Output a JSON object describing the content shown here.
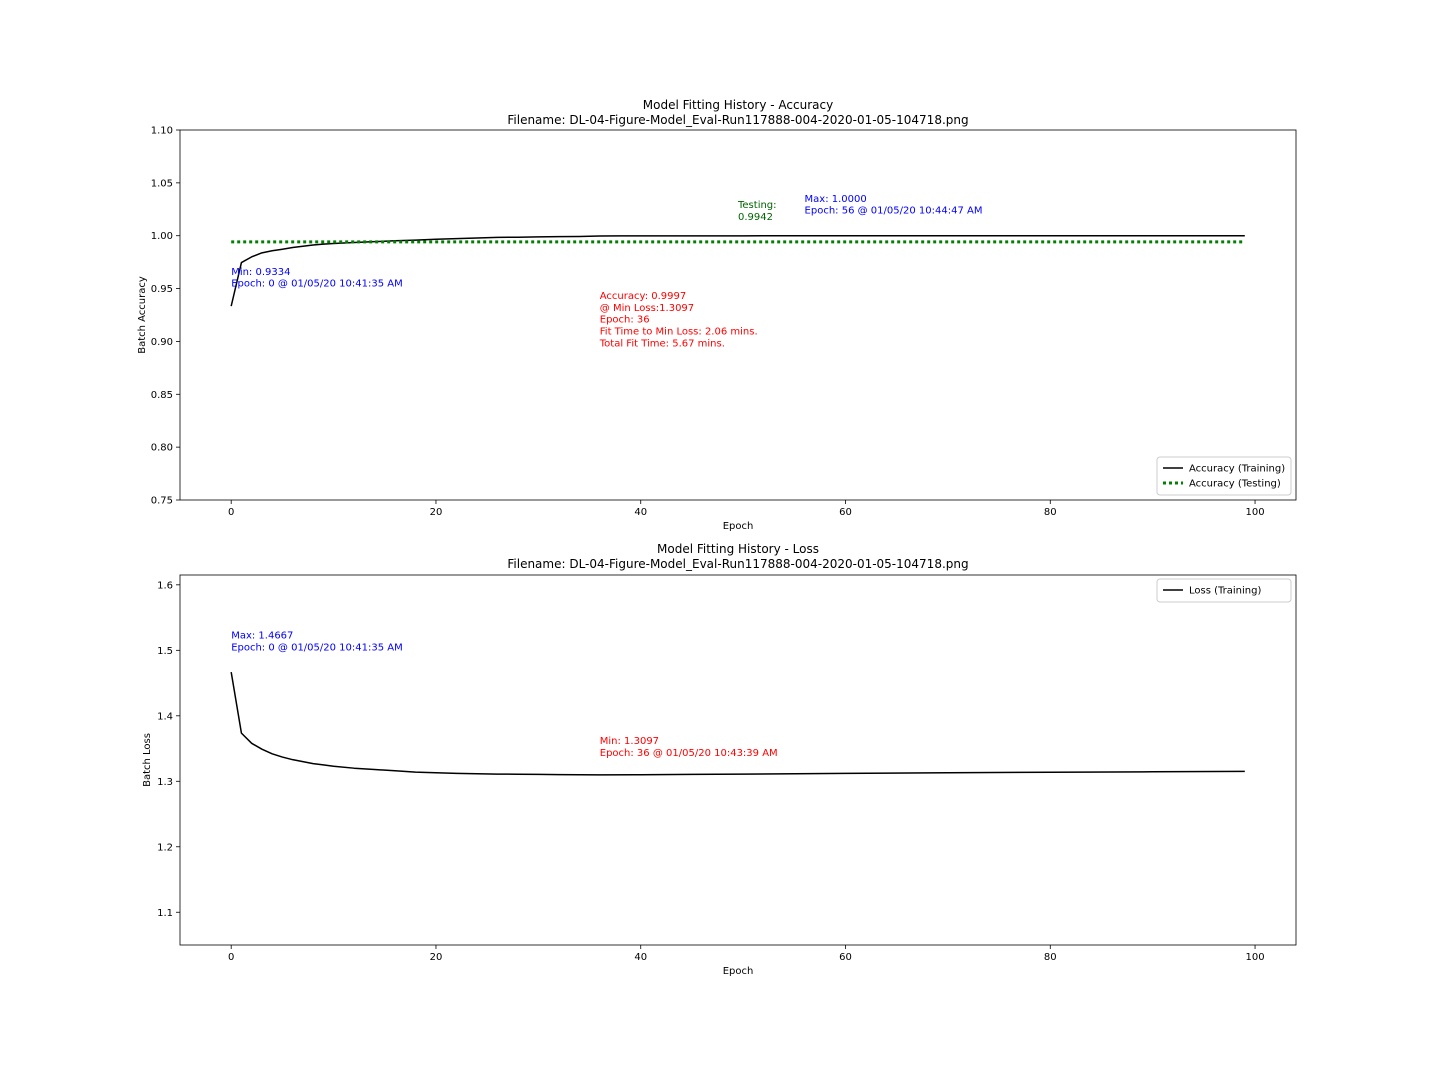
{
  "chart_data": [
    {
      "type": "line",
      "title": "Model Fitting History - Accuracy",
      "subtitle": "Filename: DL-04-Figure-Model_Eval-Run117888-004-2020-01-05-104718.png",
      "xlabel": "Epoch",
      "ylabel": "Batch Accuracy",
      "xlim": [
        -5,
        104
      ],
      "ylim": [
        0.75,
        1.1
      ],
      "xticks": [
        0,
        20,
        40,
        60,
        80,
        100
      ],
      "yticks": [
        0.75,
        0.8,
        0.85,
        0.9,
        0.95,
        1.0,
        1.05,
        1.1
      ],
      "ytick_labels": [
        "0.75",
        "0.80",
        "0.85",
        "0.90",
        "0.95",
        "1.00",
        "1.05",
        "1.10"
      ],
      "grid": false,
      "legend_position": "lower-right",
      "series": [
        {
          "name": "Accuracy (Training)",
          "color": "#000000",
          "style": "solid",
          "x": [
            0,
            1,
            2,
            3,
            4,
            5,
            6,
            7,
            8,
            9,
            10,
            12,
            14,
            16,
            18,
            20,
            22,
            24,
            26,
            28,
            30,
            32,
            34,
            36,
            38,
            40,
            45,
            50,
            56,
            60,
            70,
            80,
            90,
            99
          ],
          "y": [
            0.9334,
            0.9746,
            0.98,
            0.9838,
            0.9858,
            0.9872,
            0.9888,
            0.99,
            0.9912,
            0.992,
            0.9926,
            0.9936,
            0.9944,
            0.9952,
            0.9958,
            0.9966,
            0.9972,
            0.9978,
            0.9984,
            0.9986,
            0.9989,
            0.9991,
            0.9993,
            0.9997,
            0.9998,
            0.9998,
            0.9999,
            0.9999,
            1.0,
            1.0,
            1.0,
            1.0,
            1.0,
            1.0
          ]
        },
        {
          "name": "Accuracy (Testing)",
          "color": "#008000",
          "style": "dotted",
          "x": [
            0,
            99
          ],
          "y": [
            0.9942,
            0.9942
          ]
        }
      ],
      "annotations": [
        {
          "lines": [
            "Min: 0.9334",
            "Epoch: 0 @ 01/05/20 10:41:35 AM"
          ],
          "color": "#0000ff",
          "x": 0,
          "y": 0.963
        },
        {
          "lines": [
            "Max: 1.0000",
            "Epoch: 56 @ 01/05/20 10:44:47 AM"
          ],
          "color": "#0000ff",
          "x": 56,
          "y": 1.032
        },
        {
          "lines": [
            "Testing:",
            "0.9942"
          ],
          "color": "#006400",
          "x": 49.5,
          "y": 1.026
        },
        {
          "lines": [
            "Accuracy: 0.9997",
            "@ Min Loss:1.3097",
            "Epoch: 36",
            "Fit Time to Min Loss: 2.06 mins.",
            "Total Fit Time: 5.67 mins."
          ],
          "color": "#ff0000",
          "x": 36,
          "y": 0.94
        }
      ]
    },
    {
      "type": "line",
      "title": "Model Fitting History - Loss",
      "subtitle": "Filename: DL-04-Figure-Model_Eval-Run117888-004-2020-01-05-104718.png",
      "xlabel": "Epoch",
      "ylabel": "Batch Loss",
      "xlim": [
        -5,
        104
      ],
      "ylim": [
        1.05,
        1.615
      ],
      "xticks": [
        0,
        20,
        40,
        60,
        80,
        100
      ],
      "yticks": [
        1.1,
        1.2,
        1.3,
        1.4,
        1.5,
        1.6
      ],
      "ytick_labels": [
        "1.1",
        "1.2",
        "1.3",
        "1.4",
        "1.5",
        "1.6"
      ],
      "grid": false,
      "legend_position": "upper-right",
      "series": [
        {
          "name": "Loss (Training)",
          "color": "#000000",
          "style": "solid",
          "x": [
            0,
            1,
            2,
            3,
            4,
            5,
            6,
            7,
            8,
            9,
            10,
            12,
            14,
            16,
            18,
            20,
            22,
            24,
            26,
            28,
            30,
            32,
            34,
            36,
            40,
            45,
            50,
            60,
            70,
            80,
            90,
            99
          ],
          "y": [
            1.4667,
            1.3735,
            1.358,
            1.349,
            1.342,
            1.337,
            1.333,
            1.33,
            1.327,
            1.325,
            1.323,
            1.32,
            1.318,
            1.316,
            1.314,
            1.313,
            1.312,
            1.3115,
            1.311,
            1.3108,
            1.3105,
            1.3102,
            1.31,
            1.3097,
            1.31,
            1.3105,
            1.311,
            1.312,
            1.313,
            1.3138,
            1.3145,
            1.3152
          ]
        }
      ],
      "annotations": [
        {
          "lines": [
            "Max: 1.4667",
            "Epoch: 0 @ 01/05/20 10:41:35 AM"
          ],
          "color": "#0000ff",
          "x": 0,
          "y": 1.518
        },
        {
          "lines": [
            "Min: 1.3097",
            "Epoch: 36 @ 01/05/20 10:43:39 AM"
          ],
          "color": "#ff0000",
          "x": 36,
          "y": 1.357
        }
      ]
    }
  ]
}
